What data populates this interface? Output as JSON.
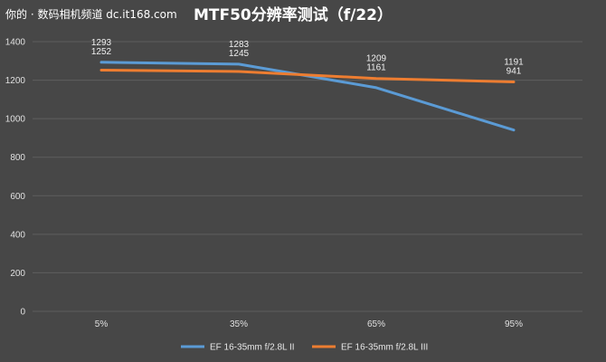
{
  "watermark": "你的 · 数码相机频道 dc.it168.com",
  "chart_data": {
    "type": "line",
    "title": "MTF50分辨率测试（f/22）",
    "xlabel": "",
    "ylabel": "",
    "categories": [
      "5%",
      "35%",
      "65%",
      "95%"
    ],
    "ylim": [
      0,
      1400
    ],
    "yticks": [
      0,
      200,
      400,
      600,
      800,
      1000,
      1200,
      1400
    ],
    "grid": true,
    "legend_position": "bottom",
    "series": [
      {
        "name": "EF 16-35mm f/2.8L II",
        "color": "#5b9bd5",
        "values": [
          1293,
          1283,
          1161,
          941
        ]
      },
      {
        "name": "EF 16-35mm f/2.8L III",
        "color": "#ed7d31",
        "values": [
          1252,
          1245,
          1209,
          1191
        ]
      }
    ]
  }
}
